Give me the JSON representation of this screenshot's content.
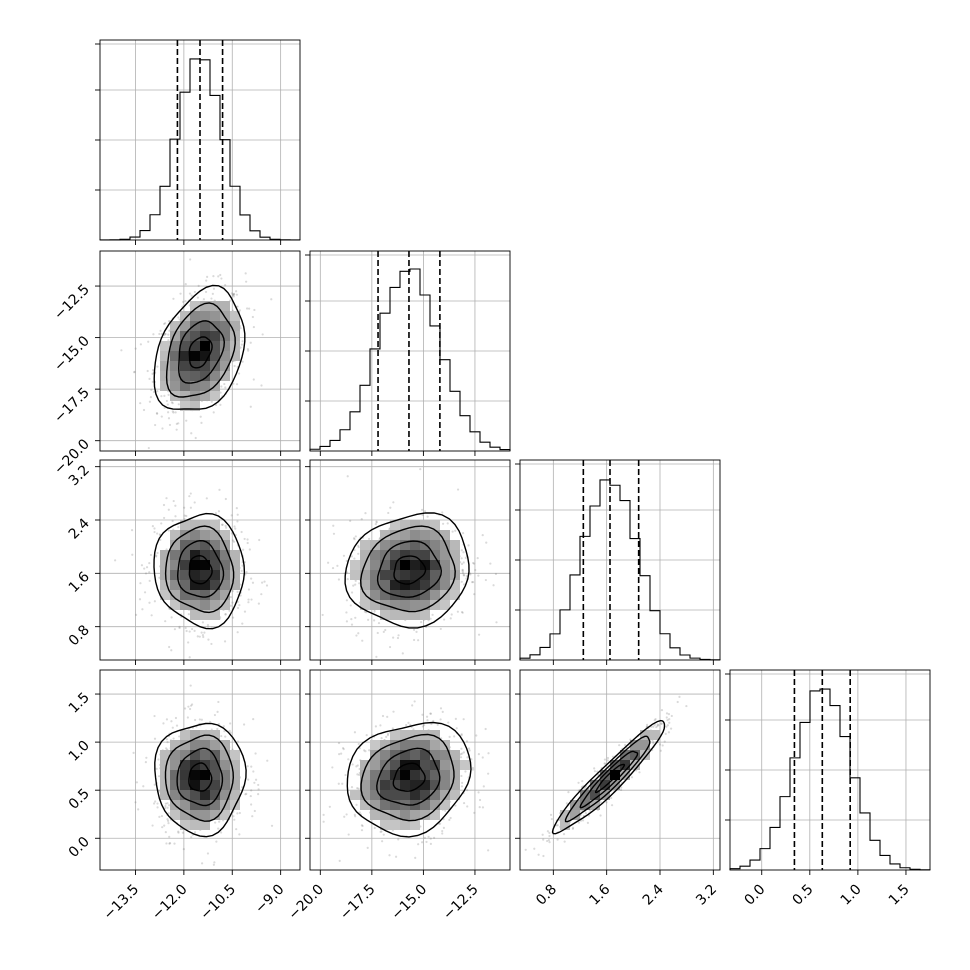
{
  "chart_data": {
    "type": "corner",
    "grid": true,
    "variables": [
      {
        "range": [
          -14.6,
          -8.4
        ],
        "ticks": [
          -13.5,
          -12.0,
          -10.5,
          -9.0
        ],
        "tick_labels": [
          "−13.5",
          "−12.0",
          "−10.5",
          "−9.0"
        ],
        "mean": -11.5,
        "sd": 0.7,
        "quantiles": [
          -12.2,
          -11.5,
          -10.8
        ]
      },
      {
        "range": [
          -20.5,
          -10.8
        ],
        "ticks": [
          -20.0,
          -17.5,
          -15.0,
          -12.5
        ],
        "tick_labels": [
          "−20.0",
          "−17.5",
          "−15.0",
          "−12.5"
        ],
        "mean": -15.7,
        "sd": 1.5,
        "quantiles": [
          -17.2,
          -15.7,
          -14.2
        ]
      },
      {
        "range": [
          0.3,
          3.3
        ],
        "ticks": [
          0.8,
          1.6,
          2.4,
          3.2
        ],
        "tick_labels": [
          "0.8",
          "1.6",
          "2.4",
          "3.2"
        ],
        "mean": 1.65,
        "sd": 0.42,
        "quantiles": [
          1.25,
          1.65,
          2.08
        ]
      },
      {
        "range": [
          -0.33,
          1.75
        ],
        "ticks": [
          0.0,
          0.5,
          1.0,
          1.5
        ],
        "tick_labels": [
          "0.0",
          "0.5",
          "1.0",
          "1.5"
        ],
        "mean": 0.63,
        "sd": 0.29,
        "quantiles": [
          0.34,
          0.63,
          0.92
        ]
      }
    ],
    "correlations": [
      {
        "pair": [
          0,
          1
        ],
        "rho": 0.3
      },
      {
        "pair": [
          0,
          2
        ],
        "rho": -0.05
      },
      {
        "pair": [
          0,
          3
        ],
        "rho": 0.0
      },
      {
        "pair": [
          1,
          2
        ],
        "rho": 0.1
      },
      {
        "pair": [
          1,
          3
        ],
        "rho": 0.15
      },
      {
        "pair": [
          2,
          3
        ],
        "rho": 0.95
      }
    ],
    "contour_levels_sigma": [
      0.5,
      1.0,
      1.5,
      2.0
    ],
    "histogram_bins": 20
  }
}
